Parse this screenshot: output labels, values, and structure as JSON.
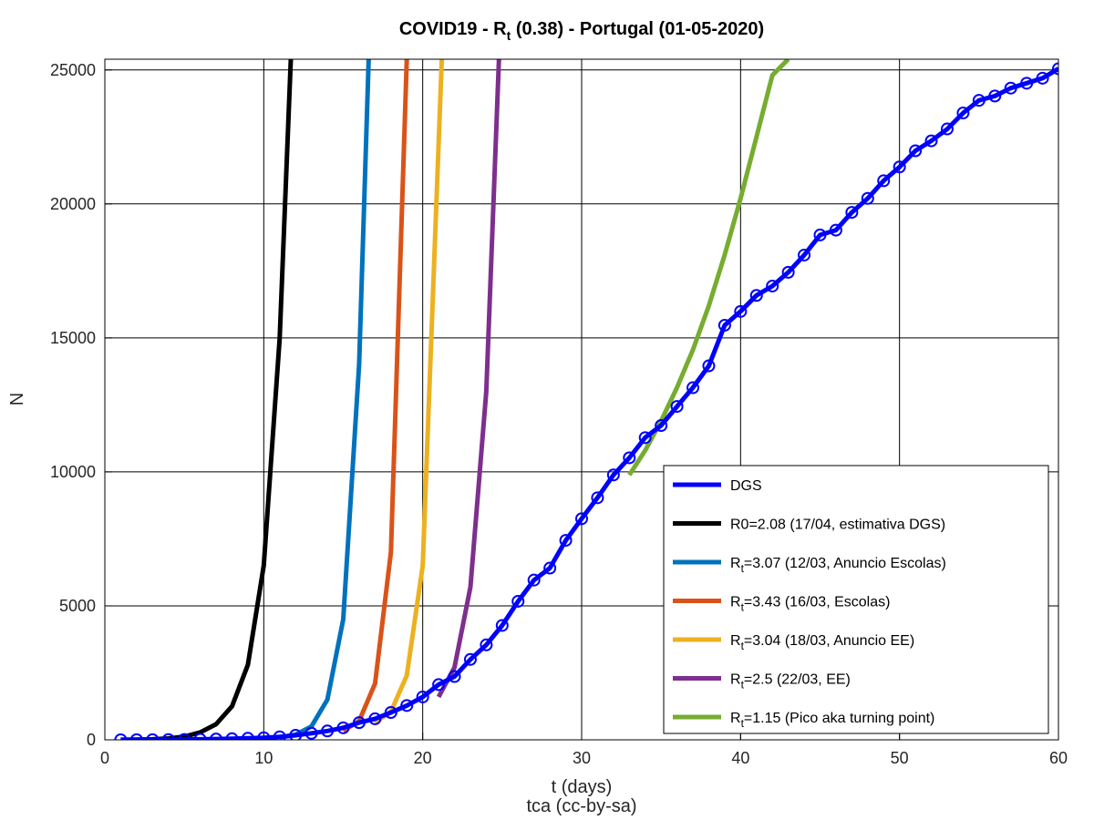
{
  "chart_data": {
    "type": "line",
    "title": "COVID19 - R_t (0.38) - Portugal (01-05-2020)",
    "title_parts": {
      "prefix": "COVID19 - R",
      "sub": "t",
      "suffix": " (0.38) - Portugal (01-05-2020)"
    },
    "xlabel": "t (days)",
    "xlabel2": "tca (cc-by-sa)",
    "ylabel": "N",
    "xlim": [
      0,
      60
    ],
    "ylim": [
      0,
      25400
    ],
    "xticks": [
      0,
      10,
      20,
      30,
      40,
      50,
      60
    ],
    "yticks": [
      0,
      5000,
      10000,
      15000,
      20000,
      25000
    ],
    "grid": true,
    "legend_position": "bottom-right",
    "series": [
      {
        "name": "DGS",
        "legend": {
          "prefix": "DGS",
          "sub": "",
          "suffix": ""
        },
        "color": "#0000ff",
        "markers": true,
        "x": [
          1,
          2,
          3,
          4,
          5,
          6,
          7,
          8,
          9,
          10,
          11,
          12,
          13,
          14,
          15,
          16,
          17,
          18,
          19,
          20,
          21,
          22,
          23,
          24,
          25,
          26,
          27,
          28,
          29,
          30,
          31,
          32,
          33,
          34,
          35,
          36,
          37,
          38,
          39,
          40,
          41,
          42,
          43,
          44,
          45,
          46,
          47,
          48,
          49,
          50,
          51,
          52,
          53,
          54,
          55,
          56,
          57,
          58,
          59,
          60
        ],
        "y": [
          2,
          4,
          6,
          9,
          13,
          20,
          30,
          41,
          59,
          78,
          112,
          169,
          245,
          331,
          448,
          642,
          785,
          1020,
          1280,
          1600,
          2060,
          2362,
          3000,
          3544,
          4268,
          5170,
          5962,
          6408,
          7443,
          8251,
          9034,
          9886,
          10524,
          11278,
          11730,
          12442,
          13141,
          13956,
          15472,
          15987,
          16585,
          16934,
          17448,
          18091,
          18841,
          19022,
          19685,
          20206,
          20863,
          21379,
          21982,
          22353,
          22797,
          23392,
          23864,
          24027,
          24322,
          24505,
          24692,
          25045
        ]
      },
      {
        "name": "R0=2.08 (17/04, estimativa DGS)",
        "legend": {
          "prefix": "R0=2.08 (17/04, estimativa DGS)",
          "sub": "",
          "suffix": ""
        },
        "color": "#000000",
        "markers": false,
        "x": [
          1,
          2,
          3,
          4,
          5,
          6,
          7,
          8,
          9,
          10,
          11,
          11.7
        ],
        "y": [
          2,
          8,
          20,
          50,
          120,
          280,
          580,
          1250,
          2800,
          6500,
          15000,
          25400
        ]
      },
      {
        "name": "Rt=3.07 (12/03, Anuncio Escolas)",
        "legend": {
          "prefix": "R",
          "sub": "t",
          "suffix": "=3.07 (12/03, Anuncio Escolas)"
        },
        "color": "#0072bd",
        "markers": false,
        "x": [
          11,
          12,
          13,
          14,
          15,
          16,
          16.6
        ],
        "y": [
          90,
          190,
          500,
          1500,
          4500,
          14000,
          25400
        ]
      },
      {
        "name": "Rt=3.43 (16/03, Escolas)",
        "legend": {
          "prefix": "R",
          "sub": "t",
          "suffix": "=3.43 (16/03, Escolas)"
        },
        "color": "#d95319",
        "markers": false,
        "x": [
          15,
          16,
          17,
          18,
          19
        ],
        "y": [
          330,
          700,
          2100,
          7000,
          25400
        ]
      },
      {
        "name": "Rt=3.04 (18/03, Anuncio EE)",
        "legend": {
          "prefix": "R",
          "sub": "t",
          "suffix": "=3.04 (18/03, Anuncio EE)"
        },
        "color": "#edb120",
        "markers": false,
        "x": [
          17,
          18,
          19,
          20,
          21.2
        ],
        "y": [
          642,
          1050,
          2400,
          6500,
          25400
        ]
      },
      {
        "name": "Rt=2.5 (22/03, EE)",
        "legend": {
          "prefix": "R",
          "sub": "t",
          "suffix": "=2.5 (22/03, EE)"
        },
        "color": "#7e2f8e",
        "markers": false,
        "x": [
          21,
          22,
          23,
          24,
          24.8
        ],
        "y": [
          1600,
          2700,
          5700,
          13000,
          25400
        ]
      },
      {
        "name": "Rt=1.15 (Pico aka turning point)",
        "legend": {
          "prefix": "R",
          "sub": "t",
          "suffix": "=1.15 (Pico aka turning point)"
        },
        "color": "#77ac30",
        "markers": false,
        "x": [
          33,
          34,
          35,
          36,
          37,
          38,
          39,
          40,
          41,
          42,
          43
        ],
        "y": [
          9886,
          10800,
          11900,
          13150,
          14550,
          16200,
          18100,
          20200,
          22500,
          24800,
          25400
        ]
      }
    ]
  }
}
